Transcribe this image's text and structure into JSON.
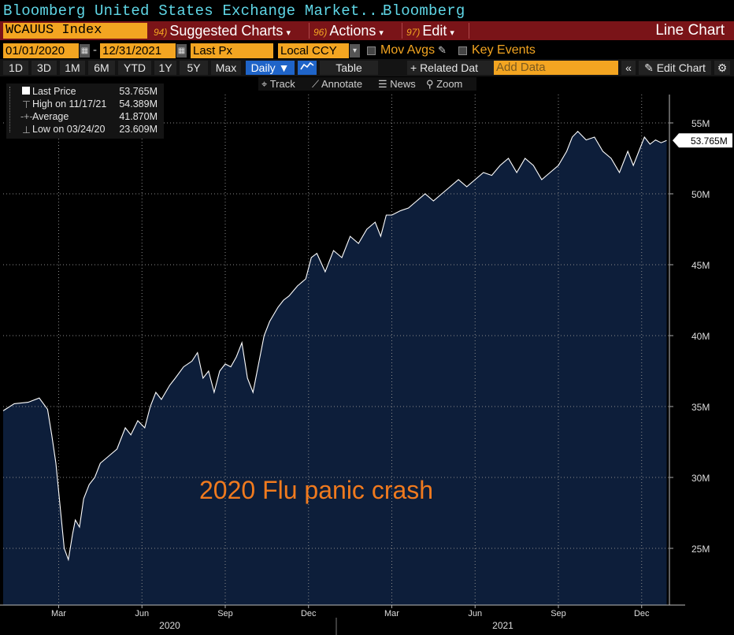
{
  "window": {
    "title_left": "Bloomberg United States Exchange Market...",
    "title_right": "Bloomberg"
  },
  "menubar": {
    "ticker": "WCAUUS Index",
    "suggested": {
      "num": "94)",
      "label": "Suggested Charts"
    },
    "actions": {
      "num": "96)",
      "label": "Actions"
    },
    "edit": {
      "num": "97)",
      "label": "Edit"
    },
    "chart_type": "Line Chart"
  },
  "dates": {
    "start": "01/01/2020",
    "dash": "-",
    "end": "12/31/2021",
    "field": "Last Px",
    "currency": "Local CCY",
    "mov_avgs": "Mov Avgs",
    "key_events": "Key Events"
  },
  "ranges": {
    "items": [
      "1D",
      "3D",
      "1M",
      "6M",
      "YTD",
      "1Y",
      "5Y",
      "Max"
    ],
    "frequency": "Daily",
    "table": "Table",
    "related": "+ Related Dat",
    "add_data_placeholder": "Add Data",
    "edit_chart": "Edit Chart"
  },
  "tools": {
    "track": "Track",
    "annotate": "Annotate",
    "news": "News",
    "zoom": "Zoom"
  },
  "legend": {
    "last_label": "Last Price",
    "last_value": "53.765M",
    "high_label": "High on 11/17/21",
    "high_value": "54.389M",
    "avg_label": "Average",
    "avg_value": "41.870M",
    "low_label": "Low on 03/24/20",
    "low_value": "23.609M"
  },
  "annotation": "2020 Flu panic crash",
  "colors": {
    "accent": "#f3a521",
    "menubar": "#7a1418",
    "area_fill": "#0d1e3a",
    "annotation": "#f07a1e",
    "title_text": "#5fd6e6"
  },
  "chart_data": {
    "type": "area",
    "title": "WCAUUS Index",
    "last_value_label": "53.765M",
    "ylim": [
      21,
      57
    ],
    "y_ticks": [
      25,
      30,
      35,
      40,
      45,
      50,
      55
    ],
    "y_tick_labels": [
      "25M",
      "30M",
      "35M",
      "40M",
      "45M",
      "50M",
      "55M"
    ],
    "x_tick_labels": [
      "Mar",
      "Jun",
      "Sep",
      "Dec",
      "Mar",
      "Jun",
      "Sep",
      "Dec"
    ],
    "x_ticks_month_index": [
      2.0,
      5.0,
      8.0,
      11.0,
      14.0,
      17.0,
      20.0,
      23.0
    ],
    "year_labels": [
      "2020",
      "2021"
    ],
    "year_centers_month_index": [
      6.0,
      18.0
    ],
    "x_range_months": [
      0,
      24
    ],
    "series": [
      {
        "name": "Last Price",
        "x": [
          0.0,
          0.4,
          0.9,
          1.3,
          1.6,
          1.75,
          1.9,
          2.05,
          2.2,
          2.35,
          2.5,
          2.6,
          2.75,
          2.9,
          3.1,
          3.3,
          3.5,
          3.8,
          4.1,
          4.4,
          4.6,
          4.85,
          5.1,
          5.3,
          5.5,
          5.7,
          6.0,
          6.2,
          6.5,
          6.8,
          7.0,
          7.2,
          7.4,
          7.6,
          7.8,
          8.0,
          8.2,
          8.4,
          8.6,
          8.8,
          9.0,
          9.2,
          9.4,
          9.6,
          9.9,
          10.1,
          10.3,
          10.6,
          10.9,
          11.1,
          11.3,
          11.6,
          11.9,
          12.2,
          12.5,
          12.8,
          13.1,
          13.4,
          13.6,
          13.8,
          14.0,
          14.3,
          14.6,
          14.9,
          15.2,
          15.5,
          15.8,
          16.1,
          16.4,
          16.7,
          17.0,
          17.3,
          17.6,
          17.9,
          18.2,
          18.5,
          18.8,
          19.1,
          19.4,
          19.7,
          20.0,
          20.3,
          20.5,
          20.7,
          21.0,
          21.3,
          21.6,
          21.9,
          22.2,
          22.5,
          22.7,
          22.9,
          23.1,
          23.3,
          23.5,
          23.7,
          23.9
        ],
        "values": [
          34.7,
          35.2,
          35.3,
          35.6,
          34.8,
          33.0,
          31.0,
          28.0,
          25.0,
          24.2,
          26.0,
          27.0,
          26.5,
          28.5,
          29.5,
          30.0,
          31.0,
          31.5,
          32.0,
          33.5,
          33.0,
          34.0,
          33.5,
          35.0,
          36.0,
          35.5,
          36.5,
          37.0,
          37.8,
          38.2,
          38.8,
          37.0,
          37.5,
          36.0,
          37.5,
          38.0,
          37.8,
          38.5,
          39.5,
          37.0,
          36.0,
          38.0,
          40.0,
          41.0,
          42.0,
          42.5,
          42.8,
          43.5,
          44.0,
          45.5,
          45.8,
          44.5,
          46.0,
          45.5,
          47.0,
          46.5,
          47.5,
          48.0,
          47.0,
          48.5,
          48.5,
          48.8,
          49.0,
          49.5,
          50.0,
          49.5,
          50.0,
          50.5,
          51.0,
          50.5,
          51.0,
          51.5,
          51.3,
          52.0,
          52.5,
          51.5,
          52.5,
          52.0,
          51.0,
          51.5,
          52.0,
          53.0,
          54.0,
          54.4,
          53.8,
          54.0,
          53.0,
          52.5,
          51.5,
          53.0,
          52.0,
          53.0,
          54.0,
          53.5,
          53.8,
          53.6,
          53.765
        ]
      }
    ]
  }
}
